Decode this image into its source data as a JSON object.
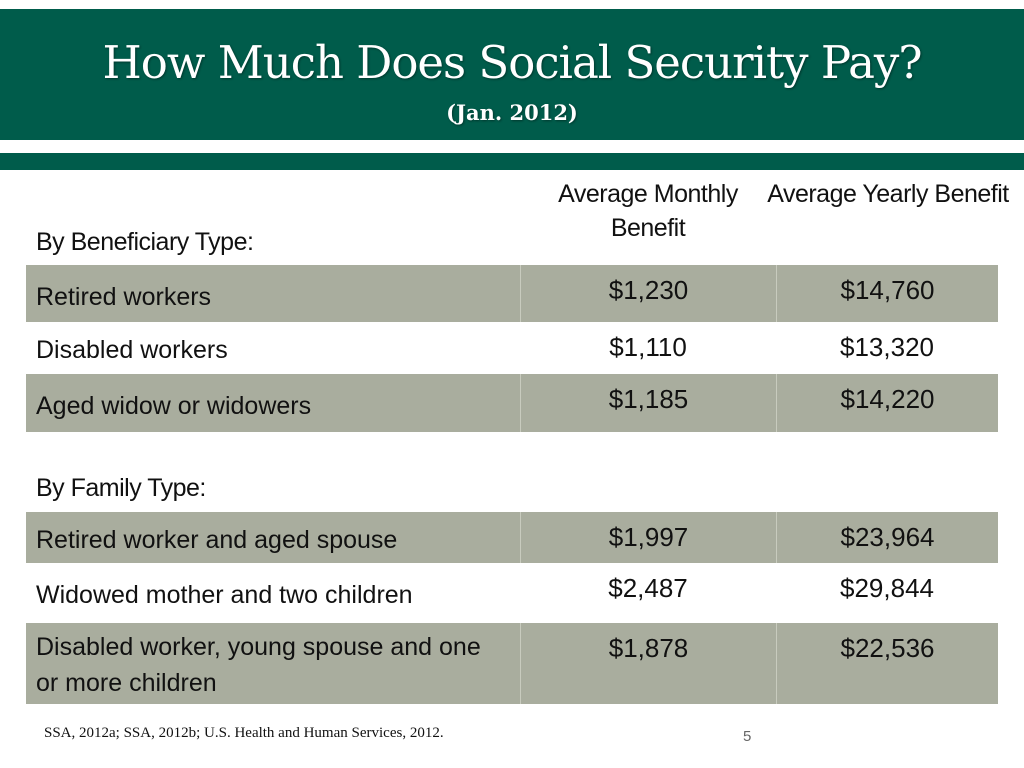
{
  "header": {
    "title": "How Much Does Social Security Pay?",
    "subtitle": "(Jan. 2012)",
    "color": "#005c4b"
  },
  "table": {
    "columns": [
      "Average Monthly Benefit",
      "Average Yearly Benefit"
    ],
    "sections": [
      {
        "label": "By Beneficiary Type:",
        "rows": [
          {
            "type": "Retired workers",
            "monthly": "$1,230",
            "yearly": "$14,760"
          },
          {
            "type": "Disabled workers",
            "monthly": "$1,110",
            "yearly": "$13,320"
          },
          {
            "type": "Aged widow or widowers",
            "monthly": "$1,185",
            "yearly": "$14,220"
          }
        ]
      },
      {
        "label": "By Family Type:",
        "rows": [
          {
            "type": "Retired worker and aged spouse",
            "monthly": "$1,997",
            "yearly": "$23,964"
          },
          {
            "type": "Widowed mother and two children",
            "monthly": "$2,487",
            "yearly": "$29,844"
          },
          {
            "type": "Disabled worker, young spouse and one or more children",
            "monthly": "$1,878",
            "yearly": "$22,536"
          }
        ]
      }
    ],
    "row_shade_color": "#a9ad9e"
  },
  "footer": {
    "source": "SSA, 2012a; SSA, 2012b; U.S. Health and Human Services, 2012.",
    "page_number": "5"
  }
}
